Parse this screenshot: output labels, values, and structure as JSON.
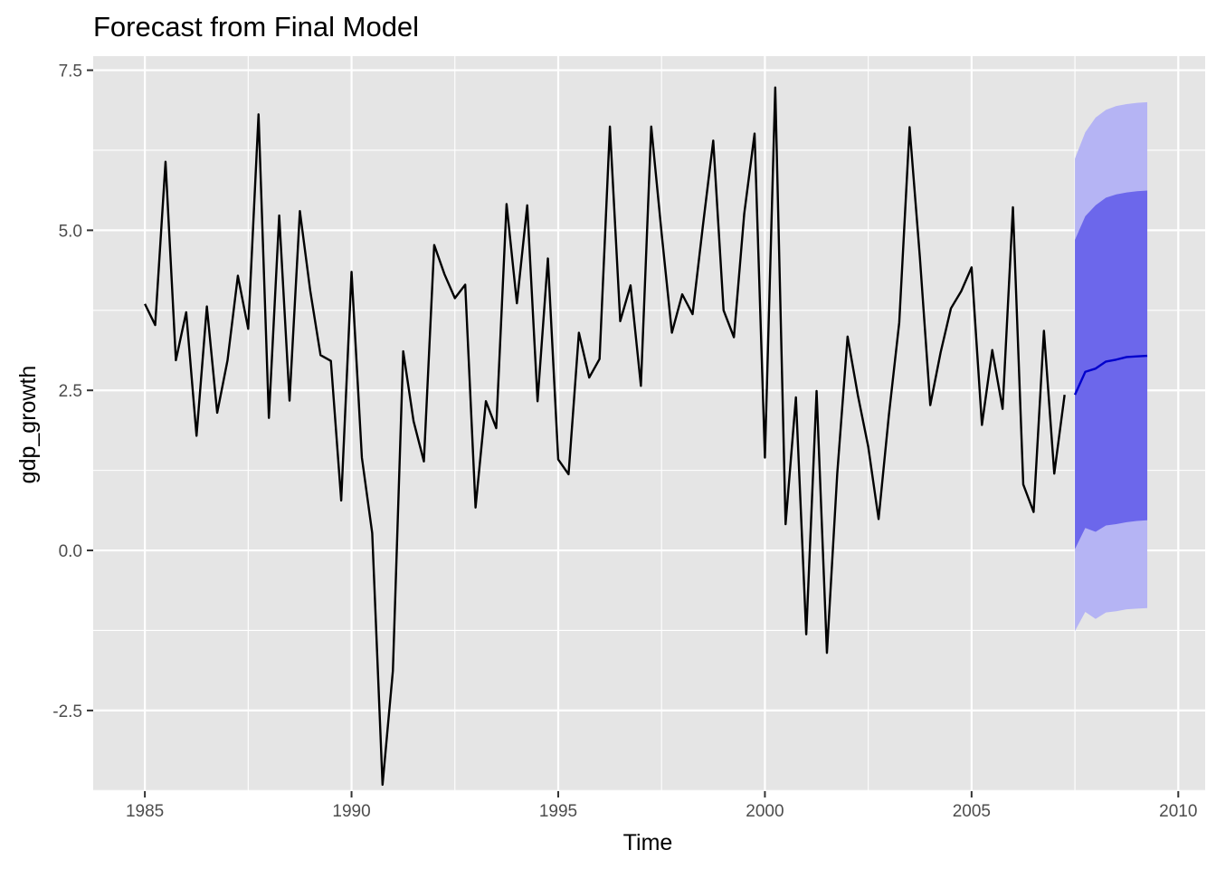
{
  "chart_data": {
    "type": "line",
    "title": "Forecast from Final Model",
    "xlabel": "Time",
    "ylabel": "gdp_growth",
    "xlim": [
      1983.75,
      2010.65
    ],
    "ylim": [
      -3.76,
      7.72
    ],
    "x_ticks": [
      1985,
      1990,
      1995,
      2000,
      2005,
      2010
    ],
    "x_tick_labels": [
      "1985",
      "1990",
      "1995",
      "2000",
      "2005",
      "2010"
    ],
    "y_ticks": [
      -2.5,
      0,
      2.5,
      5,
      7.5
    ],
    "y_tick_labels": [
      "-2.5",
      "0.0",
      "2.5",
      "5.0",
      "7.5"
    ],
    "grid": true,
    "legend": "none",
    "observed": {
      "start": 1985.0,
      "step": 0.25,
      "values": [
        3.85,
        3.52,
        6.07,
        2.97,
        3.72,
        1.79,
        3.81,
        2.15,
        2.97,
        4.29,
        3.46,
        6.81,
        2.07,
        5.23,
        2.34,
        5.3,
        4.06,
        3.05,
        2.96,
        0.78,
        4.35,
        1.45,
        0.27,
        -3.66,
        -1.88,
        3.11,
        2.02,
        1.39,
        4.77,
        4.31,
        3.94,
        4.15,
        0.67,
        2.33,
        1.91,
        5.41,
        3.86,
        5.39,
        2.33,
        4.56,
        1.42,
        1.19,
        3.4,
        2.7,
        2.99,
        6.62,
        3.58,
        4.14,
        2.57,
        6.62,
        4.96,
        3.4,
        4.0,
        3.69,
        5.07,
        6.4,
        3.75,
        3.33,
        5.26,
        6.51,
        1.45,
        7.23,
        0.41,
        2.39,
        -1.31,
        2.49,
        -1.6,
        1.2,
        3.34,
        2.42,
        1.62,
        0.49,
        2.12,
        3.56,
        6.61,
        4.57,
        2.27,
        3.09,
        3.78,
        4.05,
        4.42,
        1.96,
        3.13,
        2.21,
        5.36,
        1.03,
        0.6,
        3.43,
        1.2,
        2.43
      ]
    },
    "forecast": {
      "x": [
        2007.5,
        2007.75,
        2008.0,
        2008.25,
        2008.5,
        2008.75,
        2009.0,
        2009.25
      ],
      "mean": [
        2.43,
        2.79,
        2.84,
        2.95,
        2.98,
        3.02,
        3.03,
        3.04
      ],
      "lo80": [
        0.02,
        0.35,
        0.29,
        0.39,
        0.41,
        0.44,
        0.46,
        0.47
      ],
      "hi80": [
        4.85,
        5.22,
        5.39,
        5.51,
        5.56,
        5.59,
        5.61,
        5.62
      ],
      "lo95": [
        -1.26,
        -0.96,
        -1.07,
        -0.97,
        -0.95,
        -0.92,
        -0.91,
        -0.9
      ],
      "hi95": [
        6.12,
        6.53,
        6.76,
        6.88,
        6.94,
        6.97,
        6.99,
        7.0
      ]
    },
    "colors": {
      "panel": "#e5e5e5",
      "grid_major": "#ffffff",
      "observed_line": "#000000",
      "forecast_line": "#0000cc",
      "band95": "#b5b4f4",
      "band80": "#6c67eb",
      "tick": "#333333"
    }
  }
}
